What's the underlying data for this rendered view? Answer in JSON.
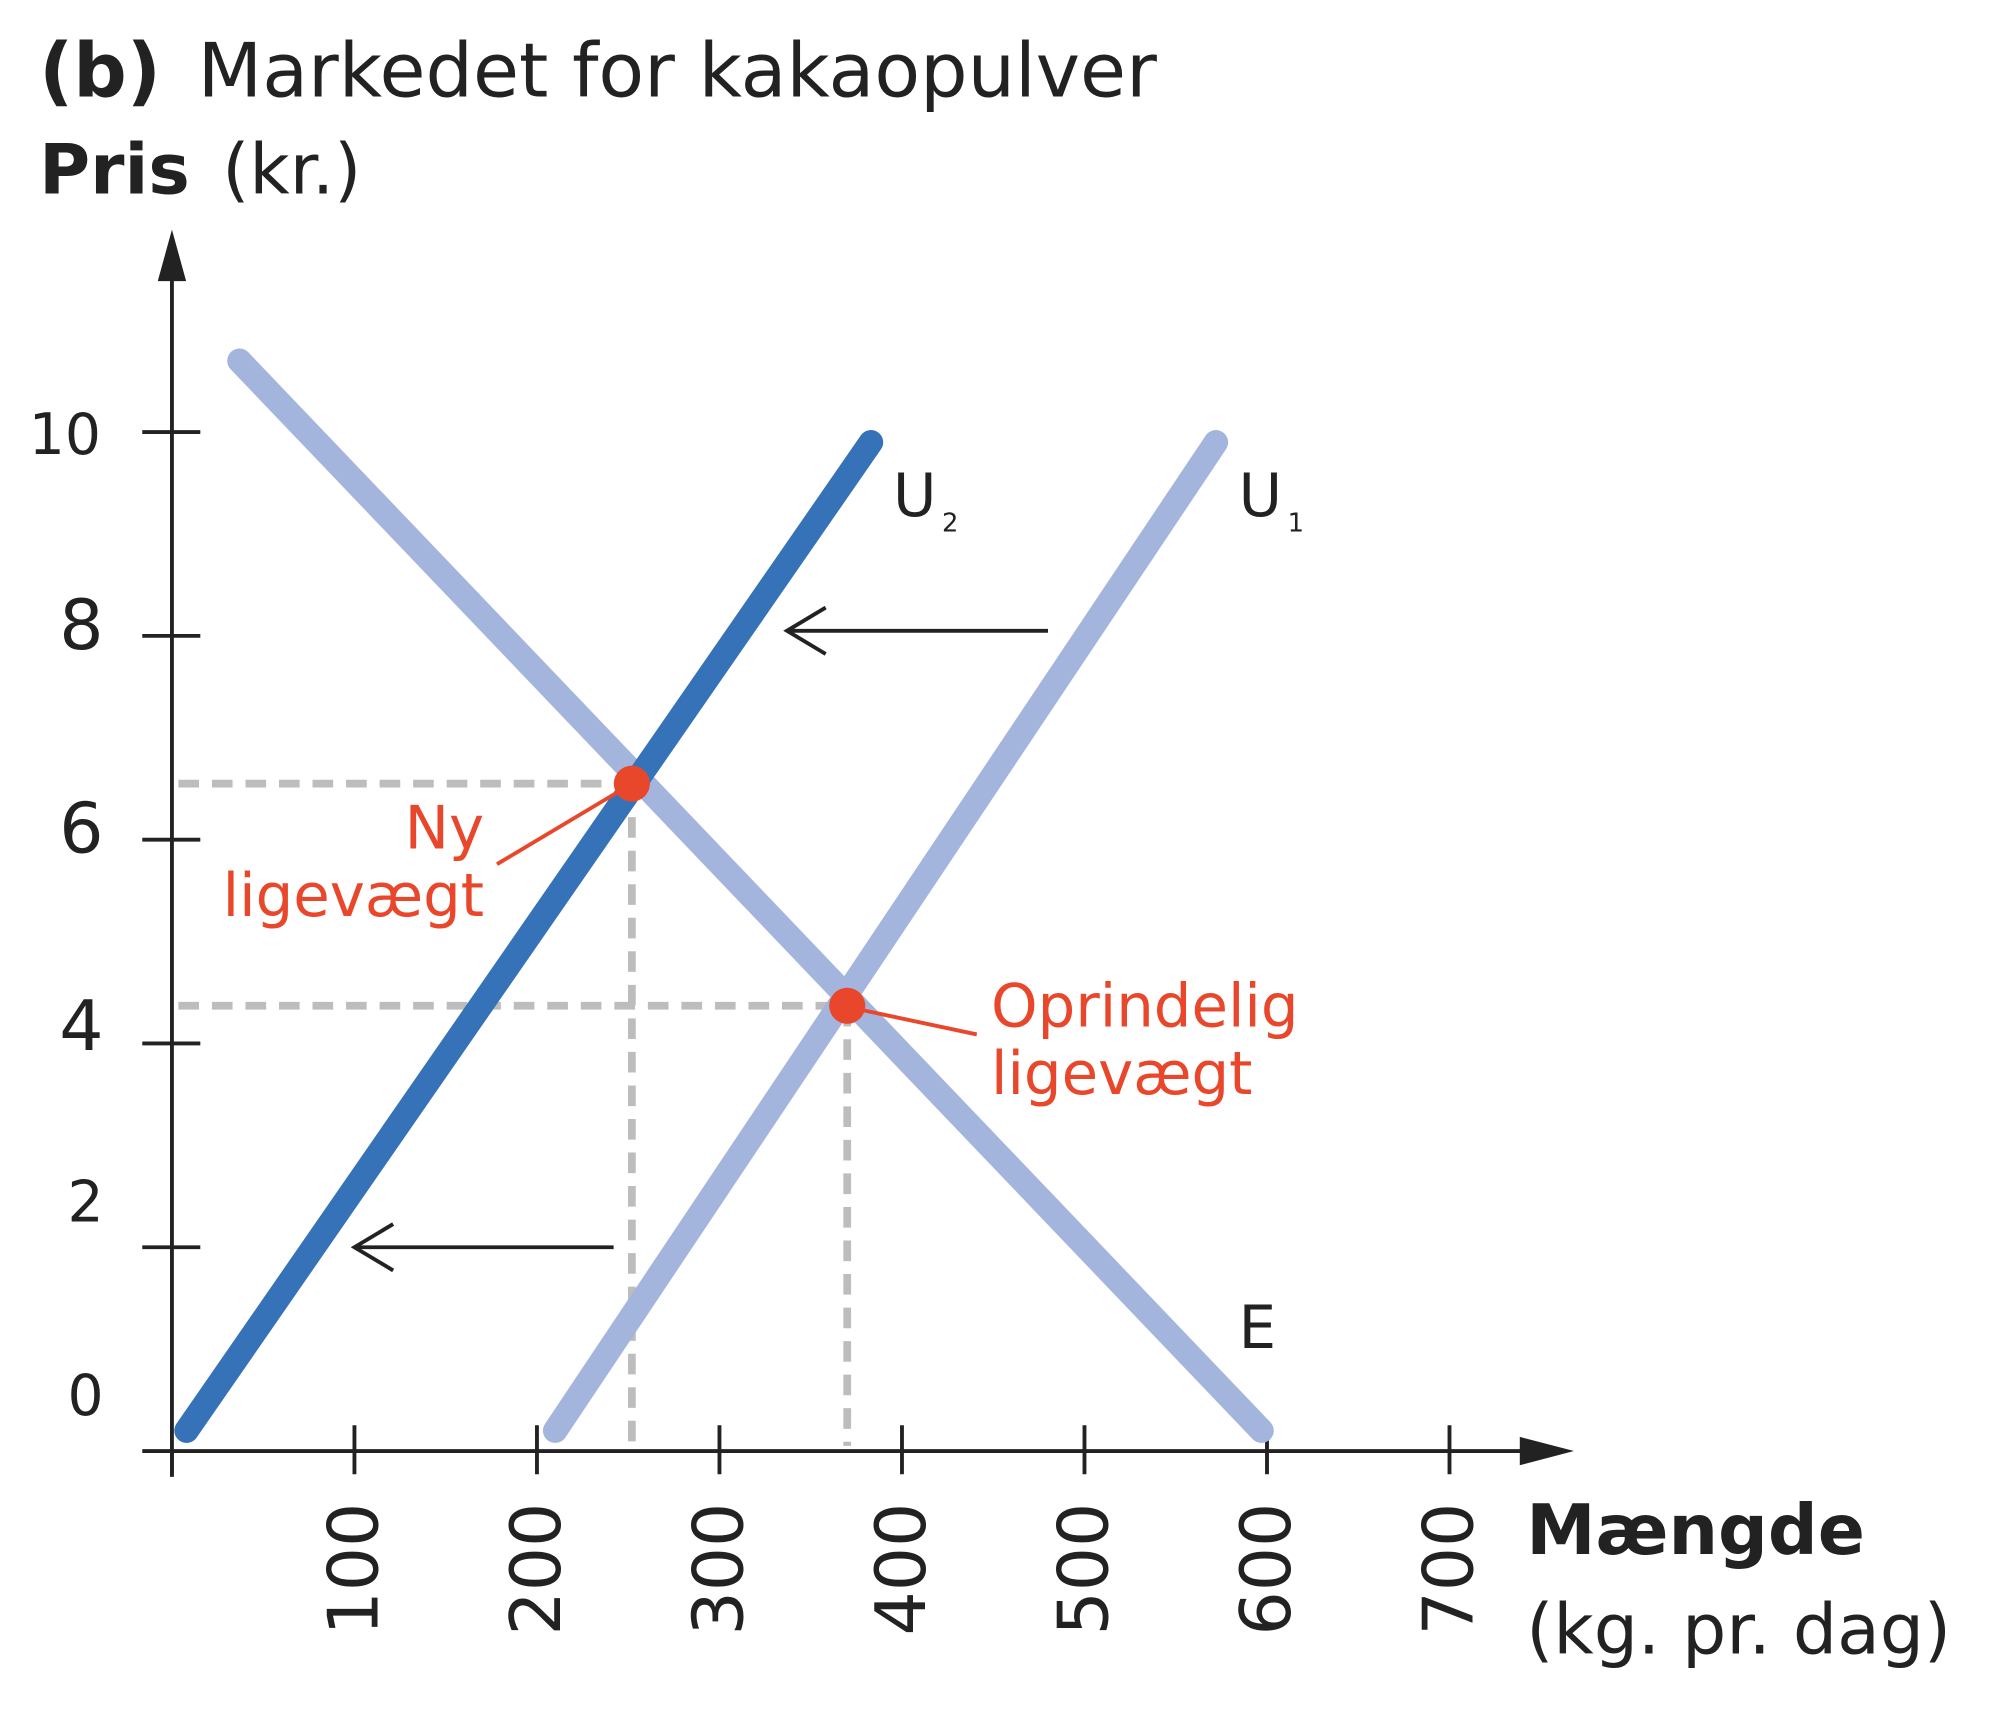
{
  "title": {
    "prefix": "(b)",
    "text": "Markedet for kakaopulver"
  },
  "chart_data": {
    "type": "line",
    "ylabel": {
      "bold": "Pris",
      "unit": "(kr.)"
    },
    "xlabel": {
      "bold": "Mængde",
      "unit": "(kg. pr. dag)"
    },
    "xlim": [
      0,
      750
    ],
    "ylim": [
      0,
      11.5
    ],
    "x_ticks": [
      100,
      200,
      300,
      400,
      500,
      600,
      700
    ],
    "x_tick_labels": [
      "100",
      "200",
      "300",
      "400",
      "500",
      "600",
      "700"
    ],
    "y_ticks": [
      0,
      2,
      4,
      6,
      8,
      10
    ],
    "y_tick_labels": [
      "0",
      "2",
      "4",
      "6",
      "8",
      "10"
    ],
    "grid": false,
    "series": [
      {
        "name": "E",
        "color": "#a3b4dd",
        "points": [
          [
            37,
            10.7
          ],
          [
            597,
            0.2
          ]
        ]
      },
      {
        "name": "U1",
        "label_main": "U",
        "label_sub": "1",
        "color": "#a3b4dd",
        "points": [
          [
            210,
            0.2
          ],
          [
            572,
            9.9
          ]
        ]
      },
      {
        "name": "U2",
        "label_main": "U",
        "label_sub": "2",
        "color": "#3572b8",
        "points": [
          [
            8,
            0.2
          ],
          [
            383,
            9.9
          ]
        ]
      }
    ],
    "equilibria": [
      {
        "label_lines": [
          "Ny",
          "ligevægt"
        ],
        "q": 252,
        "p": 6.55,
        "color": "#e8472b"
      },
      {
        "label_lines": [
          "Oprindelig",
          "ligevægt"
        ],
        "q": 370,
        "p": 4.37,
        "color": "#e8472b"
      }
    ],
    "shift_arrows": [
      {
        "from": [
          480,
          8.05
        ],
        "to": [
          337,
          8.05
        ]
      },
      {
        "from": [
          242,
          2.0
        ],
        "to": [
          100,
          2.0
        ]
      }
    ]
  }
}
